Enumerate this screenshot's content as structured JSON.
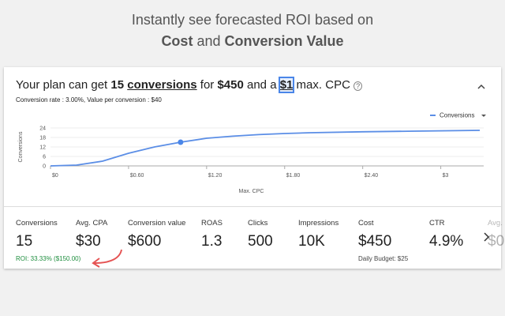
{
  "header": {
    "line1": "Instantly see forecasted ROI based on",
    "line2": [
      "Cost",
      " and ",
      "Conversion Value"
    ]
  },
  "plan": {
    "sentence": [
      "Your plan can get ",
      "15",
      " ",
      "conversions",
      " for ",
      "$450",
      " and a ",
      "$1",
      " max. CPC"
    ],
    "subtitle": "Conversion rate : 3.00%, Value per conversion : $40"
  },
  "chart": {
    "type": "line",
    "legend": "Conversions",
    "ylabel": "Conversions",
    "xlabel": "Max. CPC",
    "color": "#5b8ee6",
    "xlim": [
      0,
      3.33
    ],
    "ylim": [
      0,
      24
    ],
    "yticks": [
      0,
      6,
      12,
      18,
      24
    ],
    "xticks": [
      {
        "value": 0,
        "label": "$0"
      },
      {
        "value": 0.6,
        "label": "$0.60"
      },
      {
        "value": 1.2,
        "label": "$1.20"
      },
      {
        "value": 1.8,
        "label": "$1.80"
      },
      {
        "value": 2.4,
        "label": "$2.40"
      },
      {
        "value": 3,
        "label": "$3"
      }
    ],
    "x": [
      0,
      0.2,
      0.4,
      0.6,
      0.8,
      1.0,
      1.2,
      1.4,
      1.6,
      1.8,
      2.0,
      2.4,
      2.8,
      3.3
    ],
    "values": [
      0,
      0.5,
      3,
      8,
      12,
      15,
      17.5,
      18.8,
      19.8,
      20.5,
      21,
      21.6,
      22,
      22.5
    ],
    "marker": {
      "x": 1,
      "value": 15
    }
  },
  "metrics": [
    {
      "label": "Conversions",
      "value": "15",
      "note": "ROI: 33.33% ($150.00)"
    },
    {
      "label": "Avg. CPA",
      "value": "$30"
    },
    {
      "label": "Conversion value",
      "value": "$600"
    },
    {
      "label": "ROAS",
      "value": "1.3"
    },
    {
      "label": "Clicks",
      "value": "500"
    },
    {
      "label": "Impressions",
      "value": "10K"
    },
    {
      "label": "Cost",
      "value": "$450",
      "note": "Daily Budget: $25"
    },
    {
      "label": "CTR",
      "value": "4.9%"
    },
    {
      "label": "Avg.",
      "value": "$0"
    }
  ]
}
